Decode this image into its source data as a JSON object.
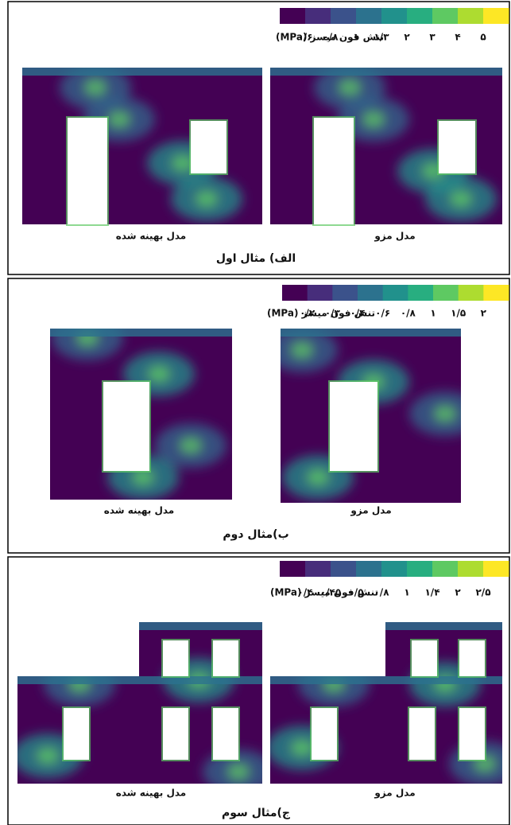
{
  "panels": [
    {
      "legend": {
        "title": "تنش فون میسز (MPa)",
        "ticks": [
          "۰/۶",
          "۰/۸",
          "۱",
          "۱/۳",
          "۲",
          "۳",
          "۴",
          "۵"
        ]
      },
      "images": [
        {
          "caption": "مدل بهینه شده"
        },
        {
          "caption": "مدل مزو"
        }
      ],
      "caption": "الف) مثال اول"
    },
    {
      "legend": {
        "title": "تنش فون میسز (MPa)",
        "ticks": [
          "۰/۲",
          "۰/۳",
          "۰/۴",
          "۰/۶",
          "۰/۸",
          "۱",
          "۱/۵",
          "۲"
        ]
      },
      "images": [
        {
          "caption": "مدل بهینه شده"
        },
        {
          "caption": "مدل مزو"
        }
      ],
      "caption": "ب)مثال دوم"
    },
    {
      "legend": {
        "title": "تنش فون میسز (MPa)",
        "ticks": [
          "۰/۴",
          "۰/۴۵",
          "۰/۵",
          "۰/۸",
          "۱",
          "۱/۴",
          "۲",
          "۲/۵"
        ]
      },
      "images": [
        {
          "caption": "مدل بهینه شده"
        },
        {
          "caption": "مدل مزو"
        }
      ],
      "caption": "ج)مثال سوم"
    }
  ]
}
